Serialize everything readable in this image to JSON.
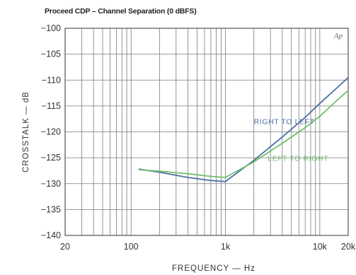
{
  "chart_data": {
    "type": "line",
    "title": "Proceed CDP – Channel Separation (0 dBFS)",
    "xlabel": "FREQUENCY — Hz",
    "ylabel": "CROSSTALK — dB",
    "x_scale": "log",
    "xlim": [
      20,
      20000
    ],
    "ylim": [
      -140,
      -100
    ],
    "x_ticks": [
      {
        "value": 20,
        "label": "20"
      },
      {
        "value": 100,
        "label": "100"
      },
      {
        "value": 1000,
        "label": "1k"
      },
      {
        "value": 10000,
        "label": "10k"
      },
      {
        "value": 20000,
        "label": "20k"
      }
    ],
    "y_ticks": [
      {
        "value": -100,
        "label": "-100"
      },
      {
        "value": -105,
        "label": "-105"
      },
      {
        "value": -110,
        "label": "-110"
      },
      {
        "value": -115,
        "label": "-115"
      },
      {
        "value": -120,
        "label": "-120"
      },
      {
        "value": -125,
        "label": "-125"
      },
      {
        "value": -130,
        "label": "-130"
      },
      {
        "value": -135,
        "label": "-135"
      },
      {
        "value": -140,
        "label": "-140"
      }
    ],
    "grid": true,
    "logo_text": "Ap",
    "series": [
      {
        "name": "RIGHT TO LEFT",
        "color": "#4a6fa5",
        "x": [
          120,
          200,
          400,
          700,
          1000,
          2000,
          4000,
          7000,
          10000,
          15000,
          20000
        ],
        "y": [
          -127.2,
          -127.8,
          -128.8,
          -129.4,
          -129.6,
          -125.5,
          -121.0,
          -117.2,
          -114.5,
          -111.6,
          -109.5
        ]
      },
      {
        "name": "LEFT TO RIGHT",
        "color": "#6fbf6a",
        "x": [
          120,
          200,
          400,
          700,
          1000,
          2000,
          4000,
          7000,
          10000,
          15000,
          20000
        ],
        "y": [
          -127.3,
          -127.6,
          -128.1,
          -128.6,
          -128.8,
          -125.8,
          -122.2,
          -119.2,
          -117.0,
          -114.0,
          -112.0
        ]
      }
    ],
    "annotations": [
      {
        "text": "RIGHT TO LEFT",
        "series": 0,
        "x": 2000,
        "y": -118.5
      },
      {
        "text": "LEFT TO RIGHT",
        "series": 1,
        "x": 2800,
        "y": -125.6
      }
    ]
  }
}
